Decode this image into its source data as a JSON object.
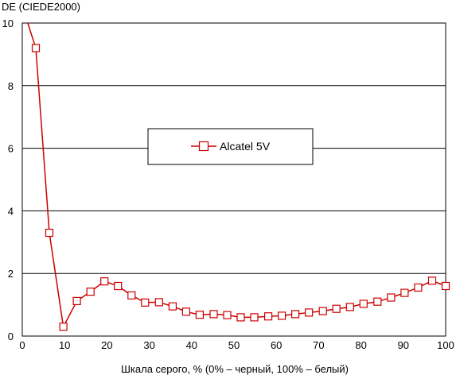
{
  "chart_data": {
    "type": "line",
    "ylabel": "DE (CIEDE2000)",
    "xlabel": "Шкала серого, % (0% – черный, 100% – белый)",
    "xlim": [
      0,
      100
    ],
    "ylim": [
      0,
      10
    ],
    "xticks": [
      0,
      10,
      20,
      30,
      40,
      50,
      60,
      70,
      80,
      90,
      100
    ],
    "yticks": [
      0,
      2,
      4,
      6,
      8,
      10
    ],
    "grid": "horizontal",
    "legend_position": "center-left",
    "series": [
      {
        "name": "Alcatel 5V",
        "color": "#cc0000",
        "marker": "square",
        "line_start": [
          1.3,
          10
        ],
        "x": [
          3.2,
          6.4,
          9.7,
          12.9,
          16.1,
          19.4,
          22.6,
          25.8,
          29.0,
          32.3,
          35.5,
          38.7,
          41.9,
          45.2,
          48.4,
          51.6,
          54.8,
          58.1,
          61.3,
          64.5,
          67.7,
          71.0,
          74.2,
          77.4,
          80.6,
          83.9,
          87.1,
          90.3,
          93.5,
          96.8,
          100
        ],
        "y": [
          9.2,
          3.3,
          0.3,
          1.12,
          1.42,
          1.75,
          1.6,
          1.3,
          1.07,
          1.08,
          0.95,
          0.78,
          0.68,
          0.7,
          0.67,
          0.6,
          0.6,
          0.63,
          0.65,
          0.7,
          0.75,
          0.8,
          0.87,
          0.93,
          1.03,
          1.1,
          1.23,
          1.38,
          1.55,
          1.77,
          1.6
        ]
      }
    ]
  }
}
